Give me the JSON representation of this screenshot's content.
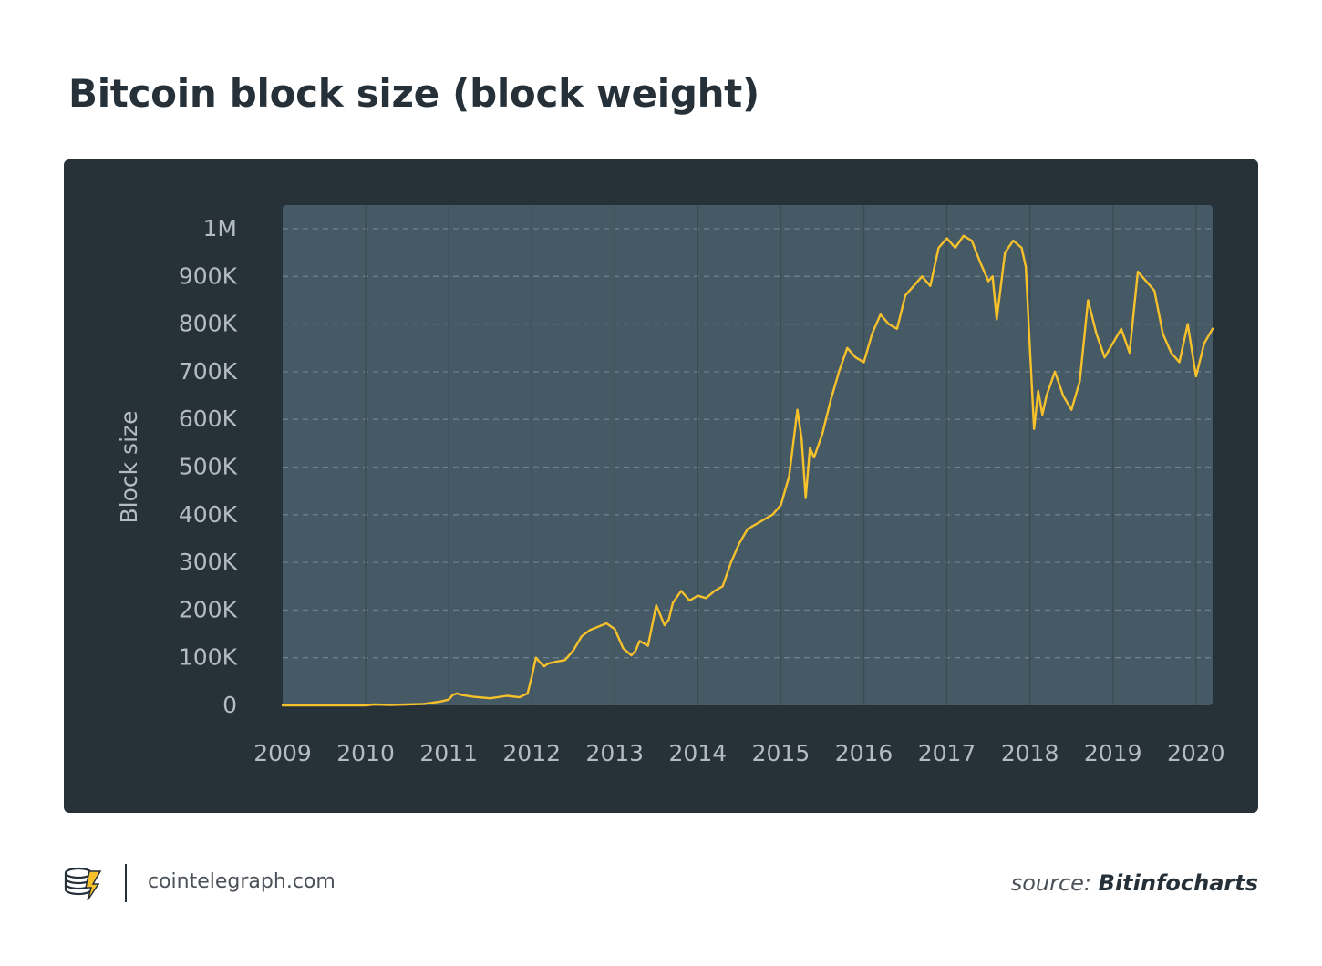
{
  "title": "Bitcoin block size (block weight)",
  "footer": {
    "site": "cointelegraph.com",
    "source_prefix": "source:",
    "source_name": "Bitinfocharts"
  },
  "colors": {
    "background": "#ffffff",
    "panel": "#263138",
    "plot_area": "#465a66",
    "line": "#f6c12b",
    "axis_text": "#b4bcc2",
    "title": "#253038"
  },
  "icons": [
    "cointelegraph-logo-icon"
  ],
  "chart_data": {
    "type": "line",
    "title": "Bitcoin block size (block weight)",
    "xlabel": "",
    "ylabel": "Block size",
    "x_ticks": [
      "2009",
      "2010",
      "2011",
      "2012",
      "2013",
      "2014",
      "2015",
      "2016",
      "2017",
      "2018",
      "2019",
      "2020"
    ],
    "y_ticks": [
      "0",
      "100K",
      "200K",
      "300K",
      "400K",
      "500K",
      "600K",
      "700K",
      "800K",
      "900K",
      "1M"
    ],
    "xlim": [
      2009.0,
      2020.2
    ],
    "ylim": [
      0,
      1000000
    ],
    "grid": true,
    "legend": "none",
    "series": [
      {
        "x": [
          2009.0,
          2009.5,
          2010.0,
          2010.1,
          2010.3,
          2010.5,
          2010.7,
          2010.9,
          2011.0,
          2011.05,
          2011.1,
          2011.15,
          2011.3,
          2011.5,
          2011.7,
          2011.85,
          2011.95,
          2012.0,
          2012.05,
          2012.1,
          2012.15,
          2012.2,
          2012.3,
          2012.4,
          2012.5,
          2012.6,
          2012.7,
          2012.8,
          2012.9,
          2013.0,
          2013.1,
          2013.2,
          2013.25,
          2013.3,
          2013.4,
          2013.5,
          2013.6,
          2013.65,
          2013.7,
          2013.8,
          2013.9,
          2014.0,
          2014.1,
          2014.2,
          2014.3,
          2014.4,
          2014.5,
          2014.6,
          2014.7,
          2014.8,
          2014.9,
          2015.0,
          2015.1,
          2015.2,
          2015.25,
          2015.3,
          2015.35,
          2015.4,
          2015.5,
          2015.6,
          2015.7,
          2015.8,
          2015.9,
          2016.0,
          2016.1,
          2016.2,
          2016.3,
          2016.4,
          2016.5,
          2016.6,
          2016.7,
          2016.8,
          2016.9,
          2017.0,
          2017.1,
          2017.2,
          2017.3,
          2017.4,
          2017.5,
          2017.55,
          2017.6,
          2017.7,
          2017.8,
          2017.9,
          2017.95,
          2018.0,
          2018.05,
          2018.1,
          2018.15,
          2018.2,
          2018.3,
          2018.4,
          2018.5,
          2018.6,
          2018.7,
          2018.8,
          2018.9,
          2019.0,
          2019.1,
          2019.2,
          2019.3,
          2019.35,
          2019.5,
          2019.6,
          2019.7,
          2019.8,
          2019.9,
          2020.0,
          2020.1,
          2020.2
        ],
        "y": [
          0,
          0,
          0,
          2000,
          1000,
          2000,
          3000,
          8000,
          12000,
          22000,
          25000,
          22000,
          18000,
          15000,
          20000,
          17000,
          25000,
          60000,
          100000,
          90000,
          82000,
          88000,
          92000,
          95000,
          115000,
          145000,
          158000,
          165000,
          172000,
          160000,
          120000,
          105000,
          115000,
          135000,
          125000,
          210000,
          168000,
          180000,
          215000,
          240000,
          220000,
          230000,
          225000,
          240000,
          250000,
          300000,
          340000,
          370000,
          380000,
          390000,
          400000,
          420000,
          480000,
          620000,
          560000,
          435000,
          540000,
          520000,
          570000,
          640000,
          700000,
          750000,
          730000,
          720000,
          780000,
          820000,
          800000,
          790000,
          860000,
          880000,
          900000,
          880000,
          960000,
          980000,
          960000,
          985000,
          975000,
          930000,
          890000,
          900000,
          810000,
          950000,
          975000,
          960000,
          920000,
          750000,
          580000,
          660000,
          610000,
          650000,
          700000,
          650000,
          620000,
          680000,
          850000,
          780000,
          730000,
          760000,
          790000,
          740000,
          910000,
          900000,
          870000,
          780000,
          740000,
          720000,
          800000,
          690000,
          760000,
          790000
        ]
      }
    ]
  }
}
